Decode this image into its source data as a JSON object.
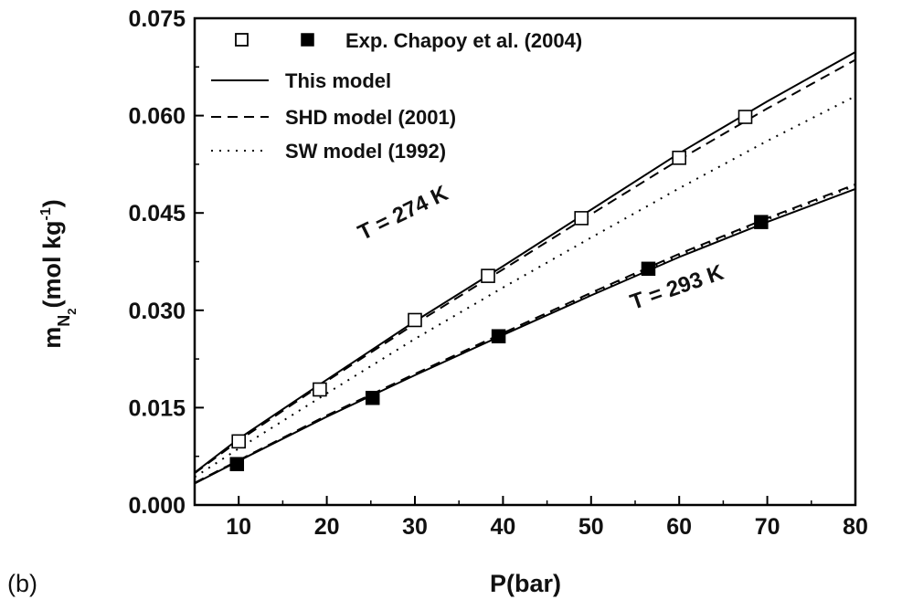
{
  "chart_data": {
    "type": "line",
    "panel_label": "(b)",
    "xlabel": "P(bar)",
    "ylabel": {
      "main": "m",
      "sub1": "N",
      "sub2": "2",
      "unit_pre": "(mol kg",
      "unit_sup": "-1",
      "unit_post": ")"
    },
    "xlim": [
      5,
      80
    ],
    "ylim": [
      0,
      0.075
    ],
    "x_ticks": [
      10,
      20,
      30,
      40,
      50,
      60,
      70,
      80
    ],
    "x_tick_labels": [
      "10",
      "20",
      "30",
      "40",
      "50",
      "60",
      "70",
      "80"
    ],
    "y_ticks": [
      0.0,
      0.015,
      0.03,
      0.045,
      0.06,
      0.075
    ],
    "y_tick_labels": [
      "0.000",
      "0.015",
      "0.030",
      "0.045",
      "0.060",
      "0.075"
    ],
    "grid": false,
    "legend_position": "top-left",
    "legend": {
      "exp_label": "Exp. Chapoy et al. (2004)",
      "this_label": "This model",
      "shd_label": "SHD model (2001)",
      "sw_label": "SW model (1992)"
    },
    "annotations": [
      {
        "text": "T = 274 K",
        "x": 29,
        "y": 0.044,
        "angle": -26
      },
      {
        "text": "T = 293 K",
        "x": 60,
        "y": 0.0325,
        "angle": -19
      }
    ],
    "series": [
      {
        "key": "exp274",
        "name": "Exp. Chapoy et al. (2004)",
        "style": "open-square",
        "x": [
          10,
          19.2,
          30,
          38.3,
          48.9,
          60,
          67.5
        ],
        "y": [
          0.0098,
          0.0178,
          0.0285,
          0.0353,
          0.0442,
          0.0535,
          0.0598
        ]
      },
      {
        "key": "exp293",
        "name": "Exp. Chapoy et al. (2004)",
        "style": "filled-square",
        "x": [
          9.8,
          25.2,
          39.5,
          56.5,
          69.3
        ],
        "y": [
          0.0063,
          0.0165,
          0.026,
          0.0364,
          0.0436
        ]
      },
      {
        "key": "this274",
        "name": "This model",
        "style": "solid",
        "x": [
          5,
          10,
          20,
          30,
          40,
          50,
          60,
          70,
          80
        ],
        "y": [
          0.005,
          0.0102,
          0.0193,
          0.0283,
          0.0368,
          0.0455,
          0.0542,
          0.0622,
          0.0698
        ]
      },
      {
        "key": "shd274",
        "name": "SHD model (2001)",
        "style": "dashed",
        "x": [
          5,
          10,
          20,
          30,
          40,
          50,
          60,
          70,
          80
        ],
        "y": [
          0.0049,
          0.0099,
          0.0191,
          0.0279,
          0.0363,
          0.0448,
          0.0532,
          0.0611,
          0.0686
        ]
      },
      {
        "key": "sw274",
        "name": "SW model (1992)",
        "style": "dotted",
        "x": [
          5,
          10,
          20,
          30,
          40,
          50,
          60,
          70,
          80
        ],
        "y": [
          0.0043,
          0.0087,
          0.0172,
          0.0256,
          0.0335,
          0.0412,
          0.0488,
          0.0561,
          0.063
        ]
      },
      {
        "key": "this293",
        "name": "This model",
        "style": "solid",
        "x": [
          5,
          10,
          20,
          30,
          40,
          50,
          60,
          70,
          80
        ],
        "y": [
          0.0033,
          0.0068,
          0.0136,
          0.02,
          0.0262,
          0.0323,
          0.0382,
          0.0436,
          0.0487
        ]
      },
      {
        "key": "shd293",
        "name": "SHD model (2001)",
        "style": "dashed",
        "x": [
          5,
          10,
          20,
          30,
          40,
          50,
          60,
          70,
          80
        ],
        "y": [
          0.0034,
          0.0069,
          0.0138,
          0.0202,
          0.0265,
          0.0327,
          0.0387,
          0.0442,
          0.0494
        ]
      },
      {
        "key": "sw293",
        "name": "SW model (1992)",
        "style": "dotted",
        "x": [
          5,
          10,
          20,
          30,
          40,
          50,
          60,
          70,
          80
        ],
        "y": [
          0.0034,
          0.0069,
          0.0137,
          0.0201,
          0.0264,
          0.0325,
          0.0385,
          0.044,
          0.0492
        ]
      }
    ]
  }
}
